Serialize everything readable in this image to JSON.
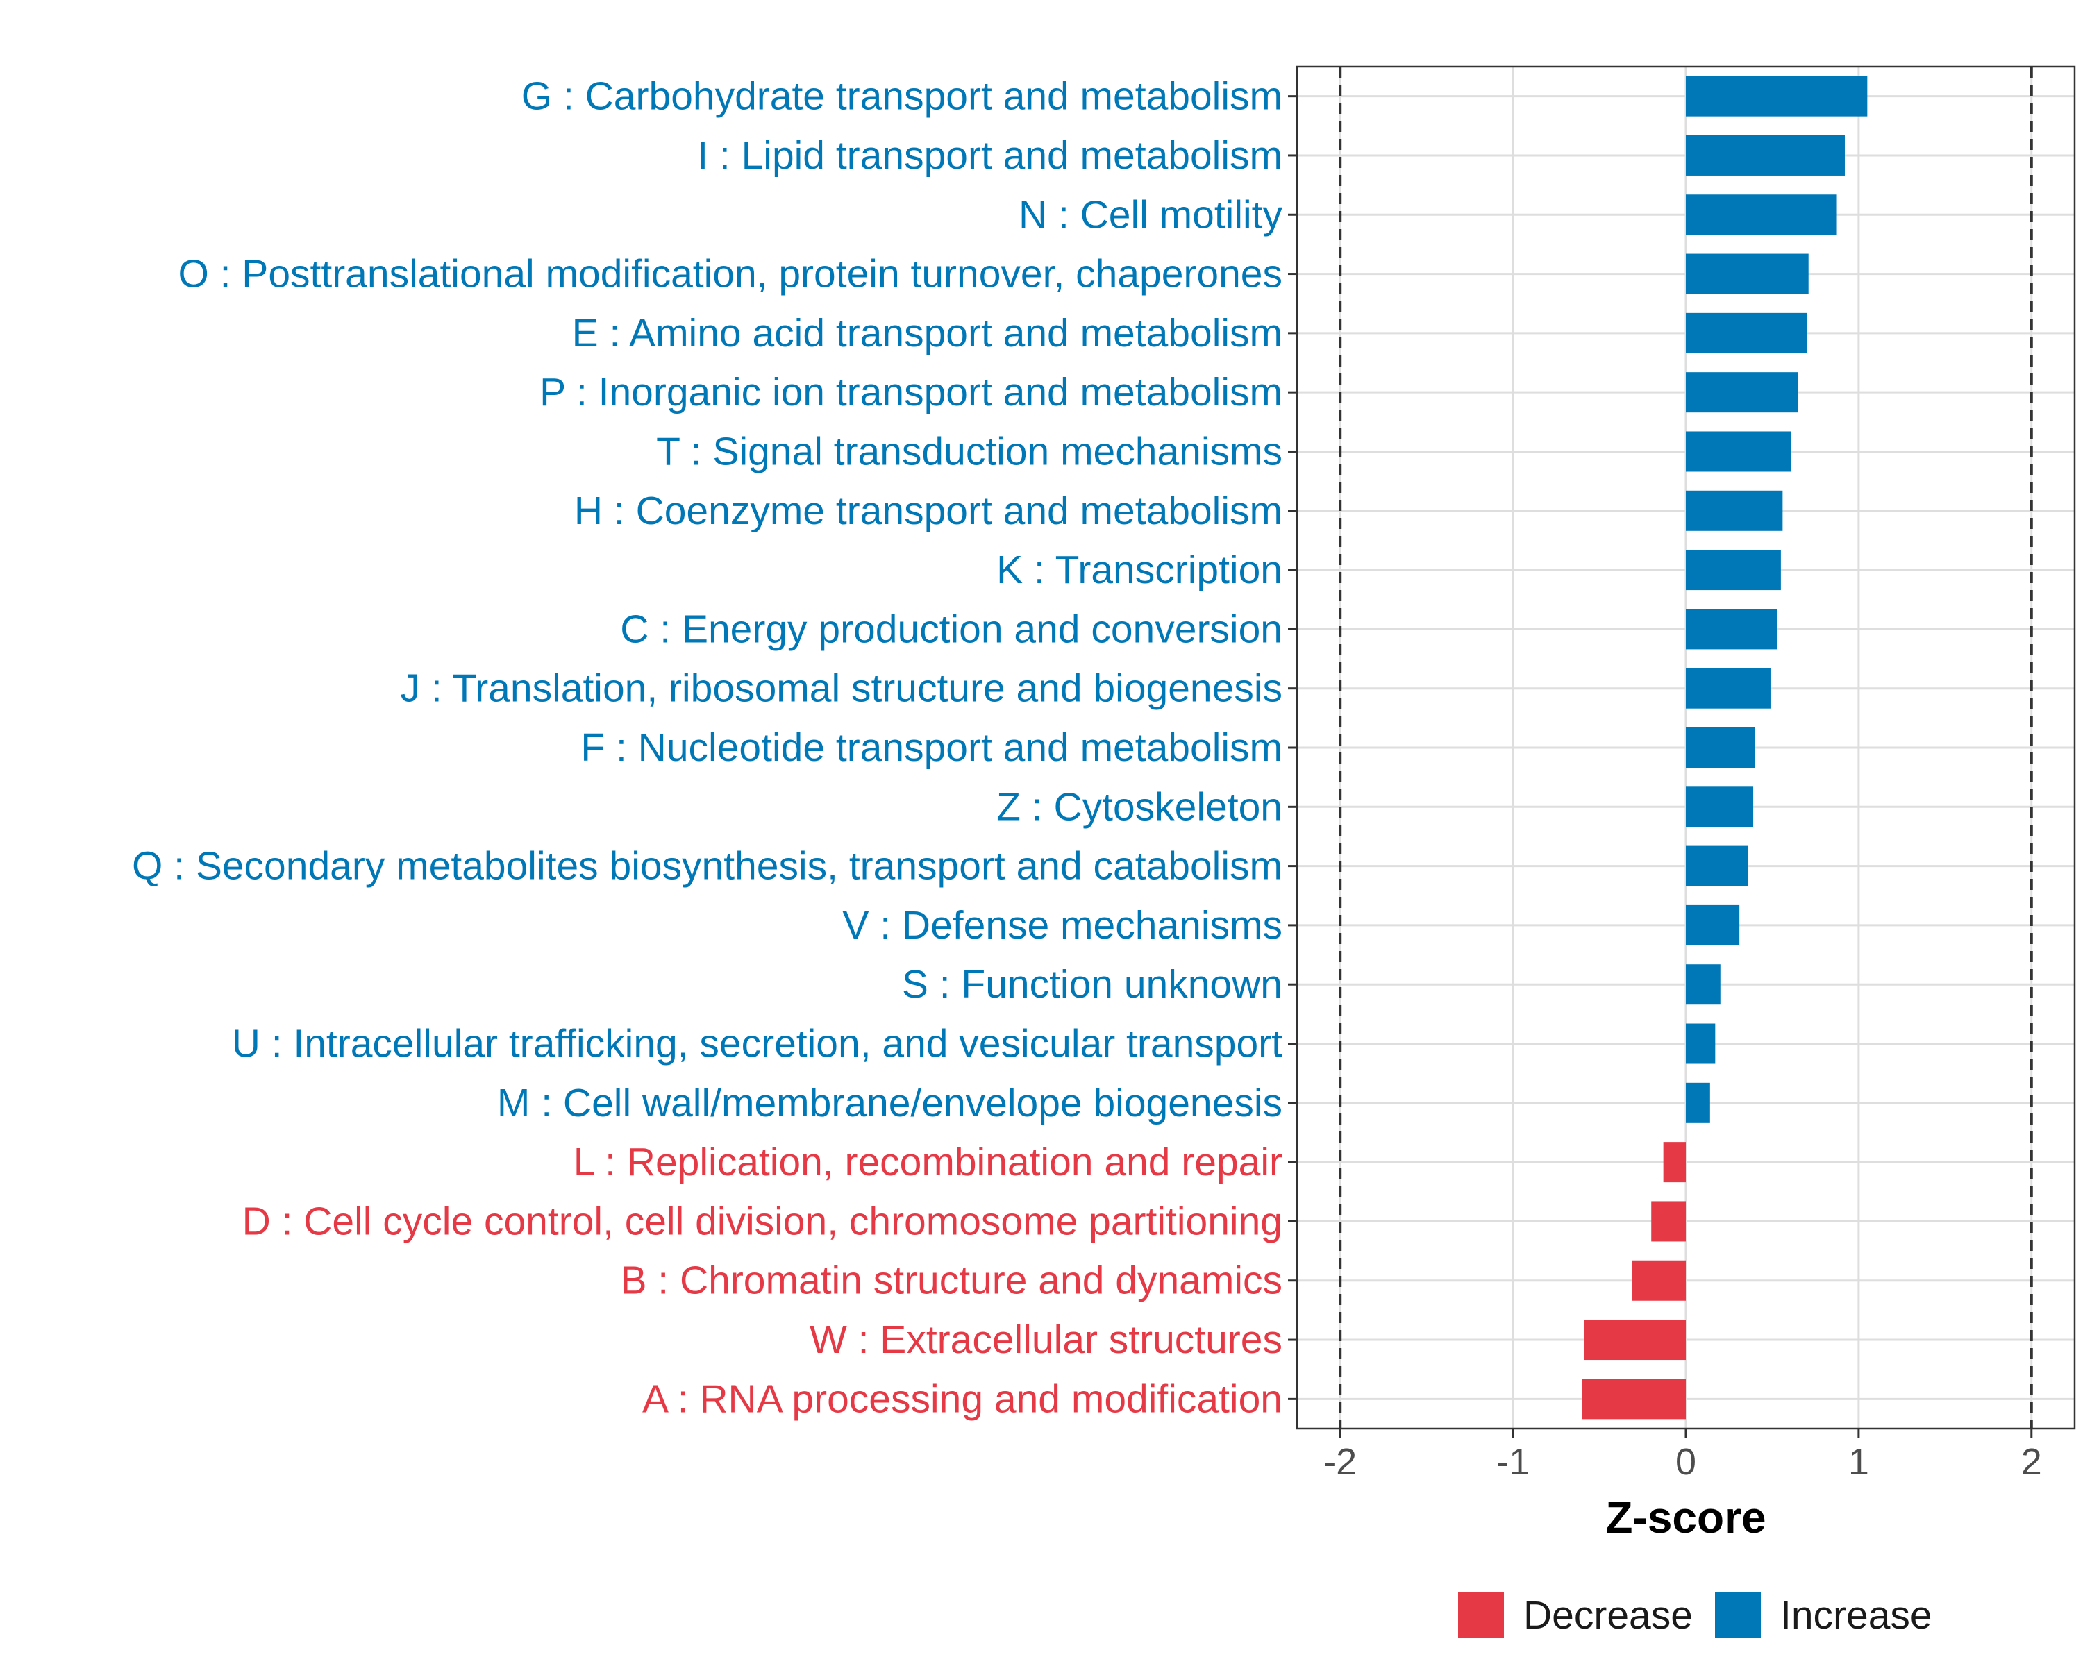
{
  "chart_data": {
    "type": "bar",
    "orientation": "horizontal",
    "title": "",
    "xlabel": "Z-score",
    "ylabel": "",
    "xlim": [
      -2.25,
      2.25
    ],
    "x_ticks": [
      -2,
      -1,
      0,
      1,
      2
    ],
    "x_tick_labels": [
      "-2",
      "-1",
      "0",
      "1",
      "2"
    ],
    "reference_lines": [
      -2,
      2
    ],
    "grid": true,
    "legend_position": "bottom",
    "legend": [
      {
        "name": "Decrease",
        "color": "#E63946"
      },
      {
        "name": "Increase",
        "color": "#0077B6"
      }
    ],
    "categories": [
      "G : Carbohydrate transport and metabolism",
      "I : Lipid transport and metabolism",
      "N : Cell motility",
      "O : Posttranslational modification, protein turnover, chaperones",
      "E : Amino acid transport and metabolism",
      "P : Inorganic ion transport and metabolism",
      "T : Signal transduction mechanisms",
      "H : Coenzyme transport and metabolism",
      "K : Transcription",
      "C : Energy production and conversion",
      "J : Translation, ribosomal structure and biogenesis",
      "F : Nucleotide transport and metabolism",
      "Z : Cytoskeleton",
      "Q : Secondary metabolites biosynthesis, transport and catabolism",
      "V : Defense mechanisms",
      "S : Function unknown",
      "U : Intracellular trafficking, secretion, and vesicular transport",
      "M : Cell wall/membrane/envelope biogenesis",
      "L : Replication, recombination and repair",
      "D : Cell cycle control, cell division, chromosome partitioning",
      "B : Chromatin structure and dynamics",
      "W : Extracellular structures",
      "A : RNA processing and modification"
    ],
    "values": [
      1.05,
      0.92,
      0.87,
      0.71,
      0.7,
      0.65,
      0.61,
      0.56,
      0.55,
      0.53,
      0.49,
      0.4,
      0.39,
      0.36,
      0.31,
      0.2,
      0.17,
      0.14,
      -0.13,
      -0.2,
      -0.31,
      -0.59,
      -0.6
    ]
  }
}
